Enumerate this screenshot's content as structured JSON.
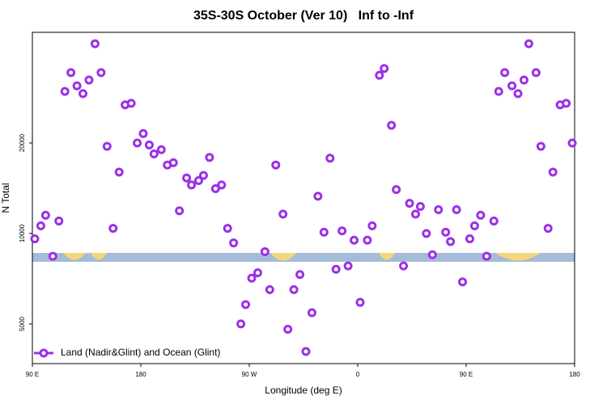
{
  "chart_data": {
    "type": "scatter",
    "title": "35S-30S October (Ver 10)   Inf to -Inf",
    "x_label": "Longitude (deg E)",
    "y_label": "N Total",
    "xlim": [
      90,
      540
    ],
    "ylim": [
      3690,
      46700
    ],
    "log_y": true,
    "xticks": [
      {
        "value": 90,
        "label": "90 E"
      },
      {
        "value": 180,
        "label": "180"
      },
      {
        "value": 270,
        "label": "90 W"
      },
      {
        "value": 360,
        "label": "0"
      },
      {
        "value": 450,
        "label": "90 E"
      },
      {
        "value": 540,
        "label": "180"
      }
    ],
    "yticks": [
      5000,
      10000,
      20000
    ],
    "legend": "bottom-left",
    "series": [
      {
        "name": "Land (Nadir&Glint) and Ocean (Glint)",
        "color": "#9b30e8",
        "x": [
          92,
          97,
          101,
          107,
          112,
          117,
          122,
          127,
          132,
          137,
          142,
          147,
          152,
          157,
          162,
          167,
          172,
          177,
          182,
          187,
          191,
          197,
          202,
          207,
          212,
          218,
          222,
          228,
          232,
          237,
          242,
          247,
          252,
          257,
          263,
          267,
          272,
          277,
          283,
          287,
          292,
          298,
          302,
          307,
          312,
          317,
          322,
          327,
          332,
          337,
          342,
          347,
          352,
          357,
          362,
          368,
          372,
          378,
          382,
          388,
          392,
          398,
          403,
          408,
          412,
          417,
          422,
          427,
          433,
          437,
          442,
          447,
          453,
          457,
          462,
          467,
          473,
          477,
          482,
          488,
          493,
          498,
          502,
          508,
          512,
          518,
          522,
          528,
          533,
          538
        ],
        "values": [
          9600,
          10600,
          11500,
          8400,
          11000,
          29700,
          34300,
          31000,
          29200,
          32400,
          42800,
          34300,
          19500,
          10400,
          16000,
          26800,
          27100,
          20000,
          21500,
          19700,
          18400,
          19000,
          16900,
          17200,
          11900,
          15300,
          14500,
          15000,
          15600,
          17900,
          14100,
          14500,
          10400,
          9300,
          5000,
          5800,
          7100,
          7400,
          8700,
          6500,
          16900,
          11600,
          4800,
          6500,
          7300,
          4050,
          5450,
          13300,
          10100,
          17800,
          7600,
          10200,
          7800,
          9500,
          5900,
          9500,
          10600,
          33600,
          35400,
          22900,
          14000,
          7800,
          12600,
          11600,
          12300,
          10000,
          8500,
          12000,
          10100,
          9400,
          12000,
          6900,
          9600,
          10600,
          11500,
          8400,
          11000,
          29700,
          34300,
          31000,
          29200,
          32400,
          42800,
          34300,
          19500,
          10400,
          16000,
          26800,
          27100,
          20000
        ]
      }
    ]
  }
}
